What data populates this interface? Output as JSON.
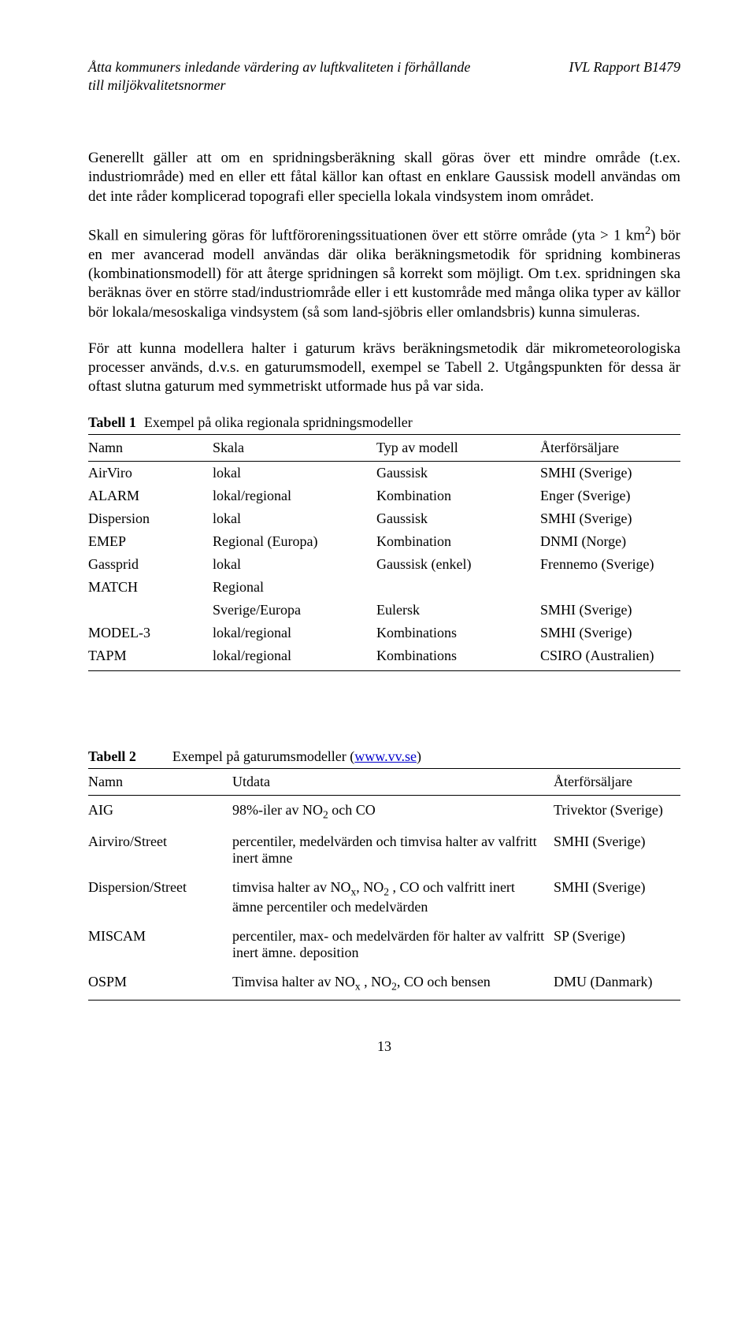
{
  "header": {
    "left_line1": "Åtta kommuners inledande värdering av luftkvaliteten i förhållande",
    "left_line2": "till miljökvalitetsnormer",
    "right": "IVL Rapport B1479"
  },
  "para1": "Generellt gäller att om en spridningsberäkning skall göras över ett mindre område (t.ex. industriområde) med en eller ett fåtal källor kan oftast en enklare Gaussisk modell användas om det inte råder komplicerad topografi eller speciella lokala vindsystem inom området.",
  "para2_a": "Skall en simulering göras för luftföroreningssituationen över ett större område (yta > 1 km",
  "para2_sup": "2",
  "para2_b": ") bör en mer avancerad modell användas där olika beräkningsmetodik för spridning kombineras (kombinationsmodell) för att återge spridningen så korrekt som möjligt. Om t.ex. spridningen ska beräknas över en större stad/industriområde eller i ett kustområde med många olika typer av källor bör lokala/mesoskaliga vindsystem (så som land-sjöbris eller omlandsbris) kunna simuleras.",
  "para3": "För att kunna modellera halter i gaturum krävs beräkningsmetodik där mikrometeorologiska processer används, d.v.s. en gaturumsmodell, exempel se Tabell 2. Utgångspunkten för dessa är oftast slutna gaturum med symmetriskt utformade hus på var sida.",
  "table1": {
    "caption_bold": "Tabell 1",
    "caption_rest": "Exempel på olika regionala spridningsmodeller",
    "cols": [
      "Namn",
      "Skala",
      "Typ av modell",
      "Återförsäljare"
    ],
    "rows": [
      [
        "AirViro",
        "lokal",
        "Gaussisk",
        "SMHI (Sverige)"
      ],
      [
        "ALARM",
        "lokal/regional",
        "Kombination",
        "Enger (Sverige)"
      ],
      [
        "Dispersion",
        "lokal",
        "Gaussisk",
        "SMHI (Sverige)"
      ],
      [
        "EMEP",
        "Regional (Europa)",
        "Kombination",
        "DNMI (Norge)"
      ],
      [
        "Gassprid",
        "lokal",
        "Gaussisk (enkel)",
        "Frennemo (Sverige)"
      ],
      [
        "MATCH",
        "Regional",
        "",
        ""
      ],
      [
        "",
        "Sverige/Europa",
        "Eulersk",
        "SMHI (Sverige)"
      ],
      [
        "MODEL-3",
        "lokal/regional",
        "Kombinations",
        "SMHI (Sverige)"
      ],
      [
        "TAPM",
        "lokal/regional",
        "Kombinations",
        "CSIRO (Australien)"
      ]
    ]
  },
  "table2": {
    "caption_bold": "Tabell 2",
    "caption_rest_a": "Exempel på gaturumsmodeller (",
    "link_text": "www.vv.se",
    "caption_rest_b": ")",
    "cols": [
      "Namn",
      "Utdata",
      "Återförsäljare"
    ],
    "rows": [
      {
        "name": "AIG",
        "u_pre": "98%-iler av NO",
        "u_sub": "2",
        "u_post": " och CO",
        "r": "Trivektor (Sverige)"
      },
      {
        "name": "Airviro/Street",
        "u_plain": "percentiler, medelvärden och timvisa halter av valfritt inert ämne",
        "r": "SMHI (Sverige)"
      },
      {
        "name": "Dispersion/Street",
        "u_pre": "timvisa halter av NO",
        "u_sub": "x",
        "u_mid": ", NO",
        "u_sub2": "2",
        "u_post": " , CO och valfritt inert ämne percentiler och medelvärden",
        "r": "SMHI (Sverige)"
      },
      {
        "name": "MISCAM",
        "u_plain": "percentiler, max- och medelvärden för halter av valfritt inert ämne. deposition",
        "r": "SP (Sverige)"
      },
      {
        "name": "OSPM",
        "u_pre": "Timvisa halter av NO",
        "u_sub": "x",
        "u_mid": " , NO",
        "u_sub2": "2",
        "u_post": ", CO och bensen",
        "r": "DMU (Danmark)"
      }
    ]
  },
  "pagenum": "13"
}
